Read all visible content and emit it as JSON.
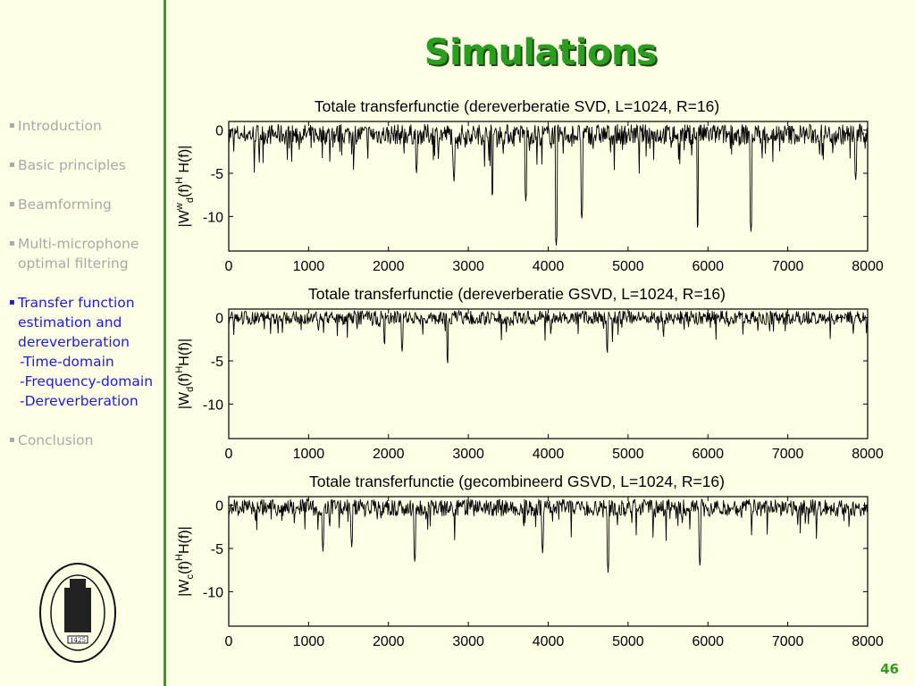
{
  "slide": {
    "title": "Simulations",
    "page_number": "46"
  },
  "sidebar": {
    "items": [
      {
        "lines": [
          "Introduction"
        ],
        "active": false
      },
      {
        "lines": [
          "Basic principles"
        ],
        "active": false
      },
      {
        "lines": [
          "Beamforming"
        ],
        "active": false
      },
      {
        "lines": [
          "Multi-microphone",
          "optimal filtering"
        ],
        "active": false
      },
      {
        "lines": [
          "Transfer function",
          "estimation and",
          "dereverberation"
        ],
        "sublines": [
          "-Time-domain",
          "-Frequency-domain",
          "-Dereverberation"
        ],
        "active": true
      },
      {
        "lines": [
          "Conclusion"
        ],
        "active": false
      }
    ],
    "seal_icon": "university-seal-icon",
    "seal_year": "1425"
  },
  "colors": {
    "accent": "#2A9E1E",
    "active_nav": "#1A1AE6",
    "inactive_nav": "#A8A8A8",
    "background": "#FFFFE6"
  },
  "chart_data": [
    {
      "type": "line",
      "title": "Totale transferfunctie (dereverberatie SVD, L=1024, R=16)",
      "ylabel": "|W_d^w(f)^H H(f)|",
      "ylabel_parts": {
        "base": "|W",
        "sub": "d",
        "sup": "w",
        "mid": "(f)",
        "sup2": "H",
        "tail": " H(f)|"
      },
      "xlim": [
        0,
        8000
      ],
      "ylim": [
        -14,
        1
      ],
      "xticks": [
        0,
        1000,
        2000,
        3000,
        4000,
        5000,
        6000,
        7000,
        8000
      ],
      "yticks": [
        0,
        -5,
        -10
      ],
      "grid": false,
      "series": [
        {
          "baseline": -0.5,
          "noise": 1.2,
          "dips": [
            [
              4100,
              -13.6
            ],
            [
              5870,
              -11.7
            ],
            [
              6540,
              -11.9
            ],
            [
              3720,
              -8.4
            ],
            [
              4420,
              -10.5
            ],
            [
              3300,
              -8.0
            ],
            [
              2820,
              -6.0
            ],
            [
              2350,
              -5.2
            ],
            [
              7850,
              -6.0
            ]
          ],
          "samples": 1024
        }
      ]
    },
    {
      "type": "line",
      "title": "Totale transferfunctie (dereverberatie GSVD, L=1024, R=16)",
      "ylabel": "|W_d(f)^H H(f)|",
      "ylabel_parts": {
        "base": "|W",
        "sub": "d",
        "sup": "",
        "mid": "(f)",
        "sup2": "H",
        "tail": "H(f)|"
      },
      "xlim": [
        0,
        8000
      ],
      "ylim": [
        -14,
        1
      ],
      "xticks": [
        0,
        1000,
        2000,
        3000,
        4000,
        5000,
        6000,
        7000,
        8000
      ],
      "yticks": [
        0,
        -5,
        -10
      ],
      "grid": false,
      "series": [
        {
          "baseline": 0.0,
          "noise": 0.8,
          "dips": [
            [
              2740,
              -5.6
            ],
            [
              4740,
              -4.4
            ],
            [
              2170,
              -4.2
            ],
            [
              1950,
              -3.5
            ]
          ],
          "samples": 1024
        }
      ]
    },
    {
      "type": "line",
      "title": "Totale transferfunctie (gecombineerd GSVD, L=1024, R=16)",
      "ylabel": "|W_c(f)^H H(f)|",
      "ylabel_parts": {
        "base": "|W",
        "sub": "c",
        "sup": "",
        "mid": "(f)",
        "sup2": "H",
        "tail": "H(f)|"
      },
      "xlim": [
        0,
        8000
      ],
      "ylim": [
        -14,
        1
      ],
      "xticks": [
        0,
        1000,
        2000,
        3000,
        4000,
        5000,
        6000,
        7000,
        8000
      ],
      "yticks": [
        0,
        -5,
        -10
      ],
      "grid": false,
      "series": [
        {
          "baseline": -0.3,
          "noise": 1.0,
          "dips": [
            [
              4750,
              -7.8
            ],
            [
              5900,
              -7.2
            ],
            [
              2330,
              -6.8
            ],
            [
              1180,
              -5.4
            ],
            [
              1540,
              -5.0
            ],
            [
              3930,
              -5.6
            ]
          ],
          "samples": 1024
        }
      ]
    }
  ]
}
